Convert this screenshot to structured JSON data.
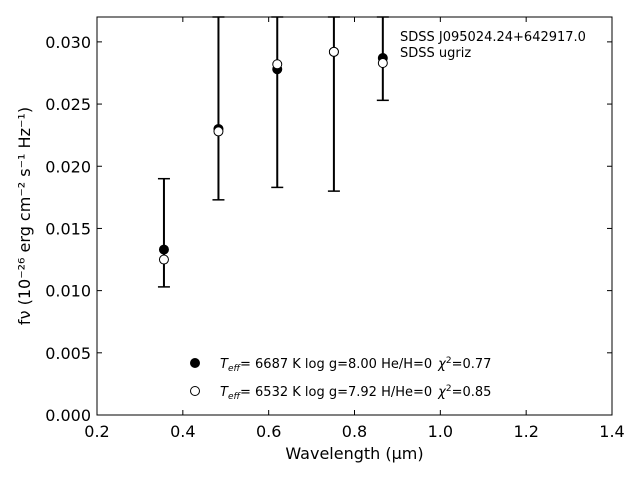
{
  "chart_data": {
    "type": "scatter",
    "annotation": [
      "SDSS J095024.24+642917.0",
      "SDSS ugriz"
    ],
    "xlabel": "Wavelength (μm)",
    "ylabel": "fν (10⁻²⁶ erg cm⁻² s⁻¹ Hz⁻¹)",
    "xlim": [
      0.2,
      1.4
    ],
    "ylim": [
      0.0,
      0.032
    ],
    "x_ticks": [
      "0.2",
      "0.4",
      "0.6",
      "0.8",
      "1.0",
      "1.2",
      "1.4"
    ],
    "y_ticks": [
      "0.000",
      "0.005",
      "0.010",
      "0.015",
      "0.020",
      "0.025",
      "0.030"
    ],
    "grid": false,
    "observed": {
      "x": [
        0.356,
        0.483,
        0.62,
        0.752,
        0.866
      ],
      "y": [
        0.0133,
        0.023,
        0.0278,
        0.0292,
        0.0287
      ],
      "err_low": [
        0.0103,
        0.0173,
        0.0183,
        0.018,
        0.0253
      ],
      "err_high": [
        0.019,
        0.032,
        0.032,
        0.032,
        0.032
      ]
    },
    "series": [
      {
        "marker": "filled-circle",
        "values": [
          0.0133,
          0.023,
          0.0278,
          0.0292,
          0.0287
        ],
        "label": {
          "teff_prefix": "T",
          "teff_sub": "eff",
          "rest": "= 6687 K log g=8.00 He/H=0",
          "chi": "χ",
          "chi_sup": "2",
          "chi_val": "=0.77"
        }
      },
      {
        "marker": "open-circle",
        "values": [
          0.0125,
          0.0228,
          0.0282,
          0.0292,
          0.0283
        ],
        "label": {
          "teff_prefix": "T",
          "teff_sub": "eff",
          "rest": "= 6532 K log g=7.92 H/He=0",
          "chi": "χ",
          "chi_sup": "2",
          "chi_val": "=0.85"
        }
      }
    ],
    "legend_position": "bottom-center"
  }
}
